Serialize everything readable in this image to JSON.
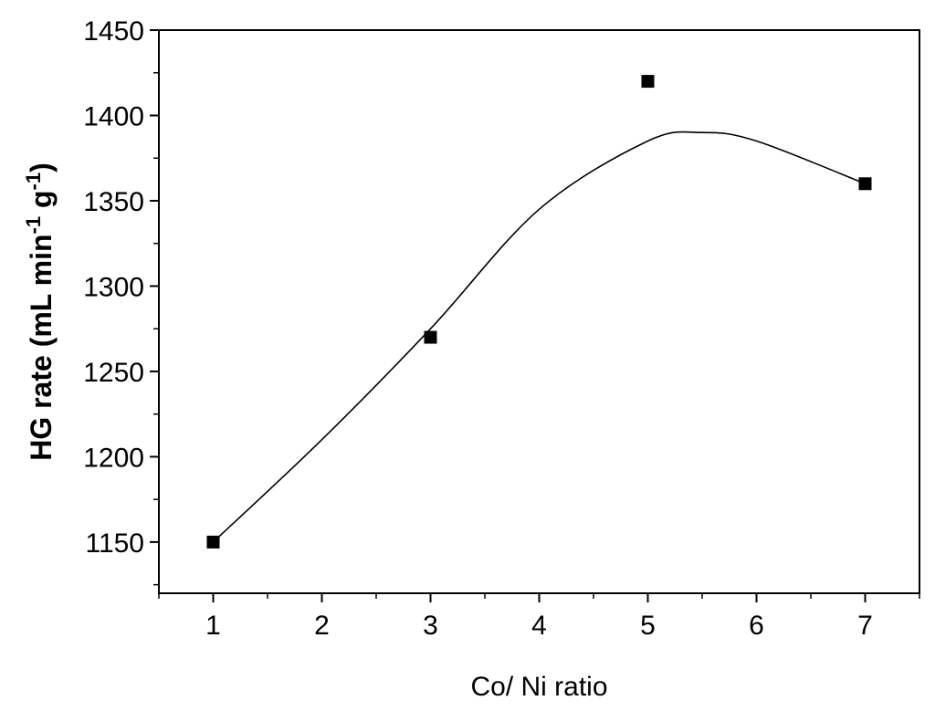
{
  "chart_data": {
    "type": "scatter",
    "xlabel": "Co/ Ni ratio",
    "ylabel": {
      "prefix": "HG rate (mL min",
      "sup1": "-1",
      "middle": " g",
      "sup2": "-1",
      "suffix": ")"
    },
    "xlim": [
      0.5,
      7.5
    ],
    "ylim": [
      1120,
      1450
    ],
    "x_ticks": [
      1,
      2,
      3,
      4,
      5,
      6,
      7
    ],
    "x_tick_labels": [
      "1",
      "2",
      "3",
      "4",
      "5",
      "6",
      "7"
    ],
    "y_ticks": [
      1150,
      1200,
      1250,
      1300,
      1350,
      1400,
      1450
    ],
    "y_tick_labels": [
      "1150",
      "1200",
      "1250",
      "1300",
      "1350",
      "1400",
      "1450"
    ],
    "series": [
      {
        "marker": "square",
        "points": [
          {
            "x": 1,
            "y": 1150
          },
          {
            "x": 3,
            "y": 1270
          },
          {
            "x": 5,
            "y": 1420
          },
          {
            "x": 7,
            "y": 1360
          }
        ]
      }
    ],
    "fit_curve": {
      "kind": "polynomial",
      "points": [
        {
          "x": 1,
          "y": 1150
        },
        {
          "x": 2,
          "y": 1210
        },
        {
          "x": 3,
          "y": 1275
        },
        {
          "x": 4,
          "y": 1345
        },
        {
          "x": 5,
          "y": 1385
        },
        {
          "x": 5.5,
          "y": 1390
        },
        {
          "x": 6,
          "y": 1385
        },
        {
          "x": 7,
          "y": 1360
        }
      ]
    },
    "grid": false,
    "legend": false,
    "colors": {
      "marker": "#000000",
      "curve": "#000000",
      "axis": "#000000"
    }
  }
}
